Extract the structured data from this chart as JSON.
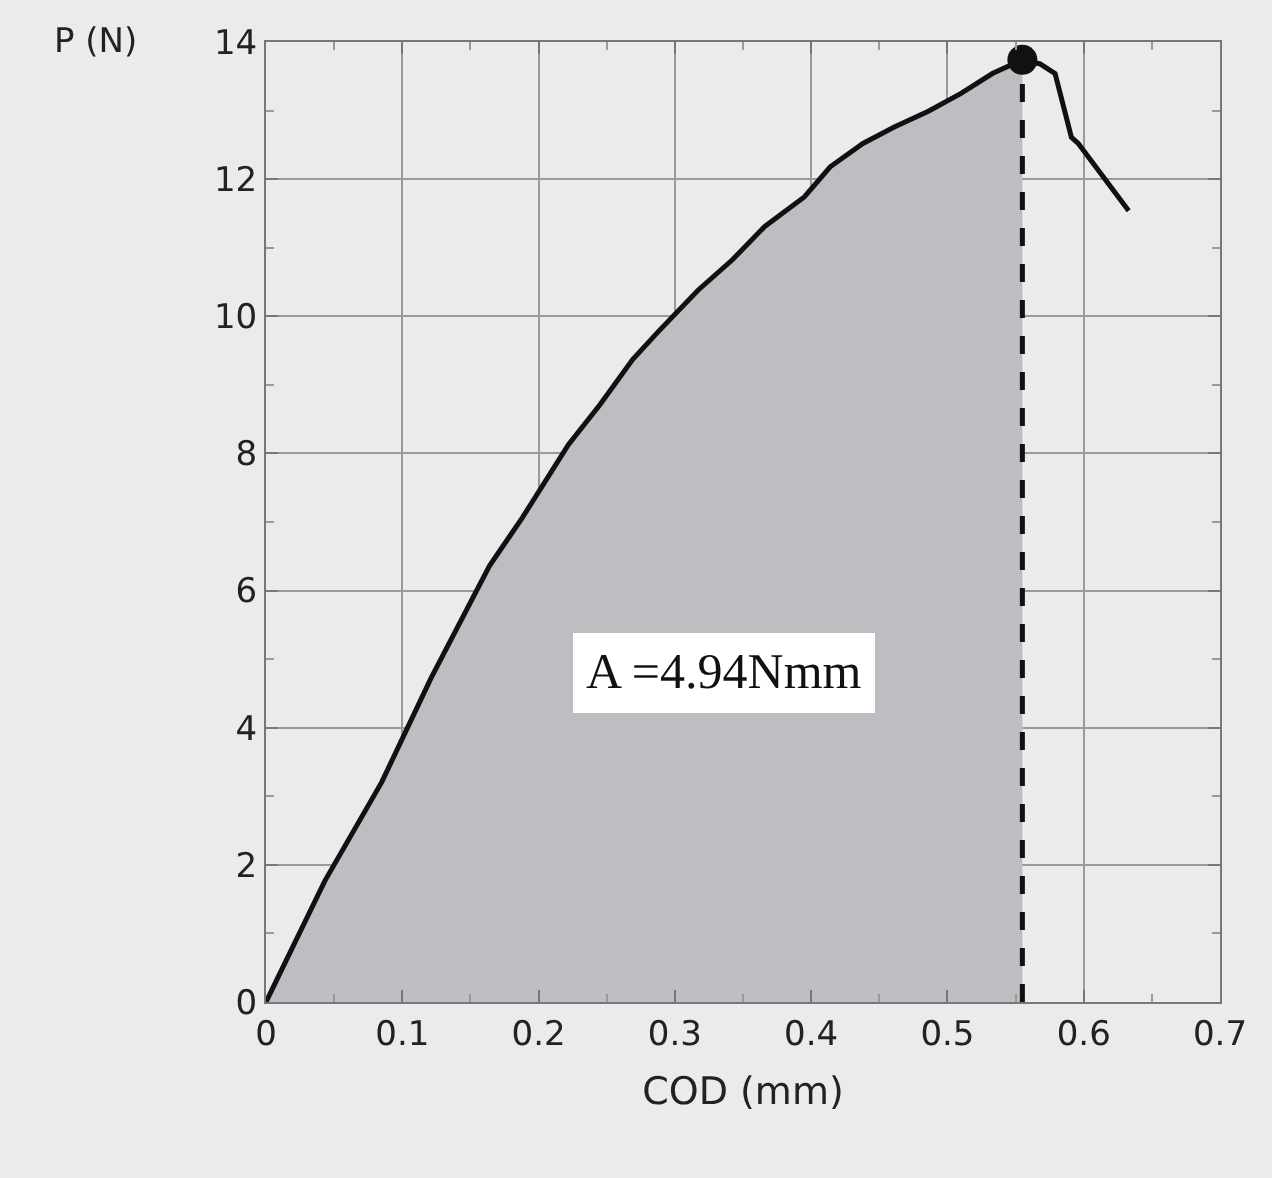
{
  "chart_data": {
    "type": "line",
    "xlabel": "COD (mm)",
    "ylabel": "P (N)",
    "xlim": [
      0,
      0.7
    ],
    "xticks": [
      0,
      0.1,
      0.2,
      0.3,
      0.4,
      0.5,
      0.6,
      0.7
    ],
    "ylim": [
      0,
      14
    ],
    "yticks": [
      0,
      2,
      4,
      6,
      8,
      10,
      12,
      14
    ],
    "grid": true,
    "series": [
      {
        "type": "area",
        "color": "#bdbec2",
        "x": [
          0,
          0.043,
          0.085,
          0.121,
          0.164,
          0.188,
          0.222,
          0.245,
          0.269,
          0.288,
          0.317,
          0.342,
          0.366,
          0.395,
          0.414,
          0.438,
          0.461,
          0.486,
          0.51,
          0.533,
          0.555
        ],
        "values": [
          0,
          1.76,
          3.21,
          4.72,
          6.36,
          7.06,
          8.13,
          8.71,
          9.37,
          9.78,
          10.38,
          10.82,
          11.31,
          11.74,
          12.18,
          12.52,
          12.76,
          12.99,
          13.25,
          13.54,
          13.74
        ]
      },
      {
        "color": "#111111",
        "x": [
          0.555,
          0.568,
          0.579,
          0.591,
          0.596,
          0.633
        ],
        "values": [
          13.74,
          13.68,
          13.54,
          12.61,
          12.52,
          11.54
        ]
      },
      {
        "type": "scatter",
        "color": "#111111",
        "marker": "circle",
        "x": [
          0.555
        ],
        "values": [
          13.74
        ]
      }
    ],
    "ref_lines": [
      {
        "axis": "x",
        "value": 0.555,
        "line_style": "dashed",
        "color": "#111111"
      }
    ],
    "annotations": [
      "A =4.94Nmm"
    ]
  }
}
